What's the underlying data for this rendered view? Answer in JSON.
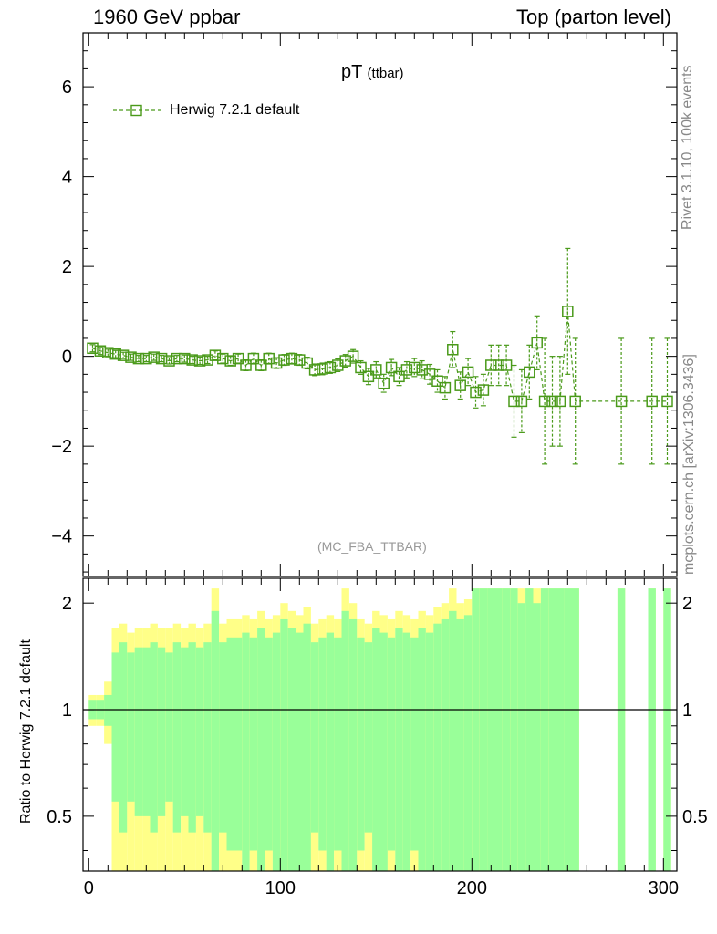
{
  "header": {
    "left": "1960 GeV ppbar",
    "right": "Top (parton level)"
  },
  "side_text": {
    "rivet": "Rivet 3.1.10,  100k events",
    "mcplots": "mcplots.cern.ch [arXiv:1306.3436]"
  },
  "title": {
    "main": "pT",
    "sub": "(ttbar)"
  },
  "legend": {
    "label": "Herwig 7.2.1 default"
  },
  "watermark": "(MC_FBA_TTBAR)",
  "ratio_ylabel": "Ratio to Herwig 7.2.1 default",
  "colors": {
    "series": "#4a9a1a",
    "band_inner": "#99ff99",
    "band_outer": "#ffff88",
    "axis": "#000000"
  },
  "chart_data": [
    {
      "type": "scatter",
      "panel": "main",
      "title": "pT (ttbar)",
      "xlabel": "",
      "ylabel": "",
      "xlim": [
        -3,
        307
      ],
      "ylim": [
        -4.9,
        7.2
      ],
      "yticks": [
        -4,
        -2,
        0,
        2,
        4,
        6
      ],
      "xticks": [
        0,
        100,
        200,
        300
      ],
      "series": [
        {
          "name": "Herwig 7.2.1 default",
          "x": [
            2,
            6,
            10,
            14,
            18,
            22,
            26,
            30,
            34,
            38,
            42,
            46,
            50,
            54,
            58,
            62,
            66,
            70,
            74,
            78,
            82,
            86,
            90,
            94,
            98,
            102,
            106,
            110,
            114,
            118,
            122,
            126,
            130,
            134,
            138,
            142,
            146,
            150,
            154,
            158,
            162,
            166,
            170,
            174,
            178,
            182,
            186,
            190,
            194,
            198,
            202,
            206,
            210,
            214,
            218,
            222,
            226,
            230,
            234,
            238,
            242,
            246,
            250,
            254,
            278,
            294,
            302
          ],
          "y": [
            0.18,
            0.12,
            0.08,
            0.05,
            0.02,
            -0.02,
            -0.05,
            -0.05,
            -0.02,
            -0.05,
            -0.1,
            -0.05,
            -0.05,
            -0.08,
            -0.1,
            -0.08,
            0.02,
            -0.05,
            -0.1,
            -0.05,
            -0.2,
            -0.05,
            -0.2,
            -0.05,
            -0.15,
            -0.08,
            -0.05,
            -0.08,
            -0.15,
            -0.3,
            -0.28,
            -0.25,
            -0.2,
            -0.1,
            0.0,
            -0.25,
            -0.45,
            -0.3,
            -0.6,
            -0.25,
            -0.45,
            -0.3,
            -0.25,
            -0.3,
            -0.4,
            -0.55,
            -0.7,
            0.15,
            -0.65,
            -0.35,
            -0.8,
            -0.75,
            -0.2,
            -0.2,
            -0.2,
            -1.0,
            -1.0,
            -0.35,
            0.3,
            -1.0,
            -1.0,
            -1.0,
            1.0,
            -1.0,
            -1.0,
            -1.0,
            -1.0
          ],
          "err": [
            0.08,
            0.08,
            0.08,
            0.08,
            0.07,
            0.07,
            0.07,
            0.07,
            0.07,
            0.07,
            0.07,
            0.07,
            0.08,
            0.08,
            0.08,
            0.08,
            0.1,
            0.1,
            0.1,
            0.1,
            0.12,
            0.12,
            0.12,
            0.12,
            0.12,
            0.12,
            0.12,
            0.12,
            0.13,
            0.13,
            0.13,
            0.13,
            0.14,
            0.14,
            0.15,
            0.15,
            0.18,
            0.18,
            0.2,
            0.18,
            0.2,
            0.18,
            0.2,
            0.2,
            0.22,
            0.25,
            0.25,
            0.4,
            0.3,
            0.3,
            0.35,
            0.35,
            0.45,
            0.45,
            0.45,
            0.8,
            0.7,
            0.6,
            0.6,
            1.4,
            1.0,
            1.0,
            1.4,
            1.4,
            1.4,
            1.4,
            1.4
          ]
        }
      ]
    },
    {
      "type": "area",
      "panel": "ratio",
      "ylabel": "Ratio to Herwig 7.2.1 default",
      "xlim": [
        -3,
        307
      ],
      "ylim": [
        0.35,
        2.35
      ],
      "yscale": "log",
      "yticks": [
        0.5,
        1,
        2
      ],
      "xticks": [
        0,
        100,
        200,
        300
      ],
      "bin_width": 4,
      "reference_line": 1,
      "bins_x": [
        2,
        6,
        10,
        14,
        18,
        22,
        26,
        30,
        34,
        38,
        42,
        46,
        50,
        54,
        58,
        62,
        66,
        70,
        74,
        78,
        82,
        86,
        90,
        94,
        98,
        102,
        106,
        110,
        114,
        118,
        122,
        126,
        130,
        134,
        138,
        142,
        146,
        150,
        154,
        158,
        162,
        166,
        170,
        174,
        178,
        182,
        186,
        190,
        194,
        198,
        202,
        206,
        210,
        214,
        218,
        222,
        226,
        230,
        234,
        238,
        242,
        246,
        250,
        254,
        278,
        294,
        302
      ],
      "inner_band": [
        0.06,
        0.06,
        0.1,
        0.45,
        0.55,
        0.45,
        0.5,
        0.5,
        0.55,
        0.5,
        0.45,
        0.55,
        0.5,
        0.55,
        0.5,
        0.55,
        0.9,
        0.55,
        0.6,
        0.6,
        0.65,
        0.6,
        0.7,
        0.6,
        0.65,
        0.8,
        0.7,
        0.65,
        0.75,
        0.55,
        0.6,
        0.65,
        0.6,
        0.9,
        0.8,
        0.6,
        0.55,
        0.7,
        0.65,
        0.6,
        0.7,
        0.65,
        0.6,
        0.7,
        0.65,
        0.75,
        0.8,
        0.9,
        0.8,
        0.85,
        1.2,
        1.2,
        1.2,
        1.2,
        1.2,
        1.2,
        1.0,
        1.2,
        1.0,
        1.2,
        1.2,
        1.2,
        1.2,
        1.2,
        1.2,
        1.2,
        1.2
      ],
      "outer_band": [
        0.1,
        0.1,
        0.2,
        0.7,
        0.75,
        0.65,
        0.7,
        0.7,
        0.75,
        0.7,
        0.7,
        0.75,
        0.7,
        0.75,
        0.7,
        0.75,
        1.2,
        0.75,
        0.8,
        0.8,
        0.85,
        0.8,
        0.9,
        0.8,
        0.85,
        1.0,
        0.9,
        0.85,
        0.95,
        0.75,
        0.8,
        0.85,
        0.8,
        1.2,
        1.0,
        0.8,
        0.75,
        0.9,
        0.85,
        0.8,
        0.9,
        0.85,
        0.8,
        0.9,
        0.85,
        0.95,
        1.0,
        1.2,
        1.0,
        1.05,
        1.2,
        1.2,
        1.2,
        1.2,
        1.2,
        1.2,
        1.2,
        1.2,
        1.2,
        1.2,
        1.2,
        1.2,
        1.2,
        1.2,
        1.2,
        1.2,
        1.2
      ]
    }
  ]
}
